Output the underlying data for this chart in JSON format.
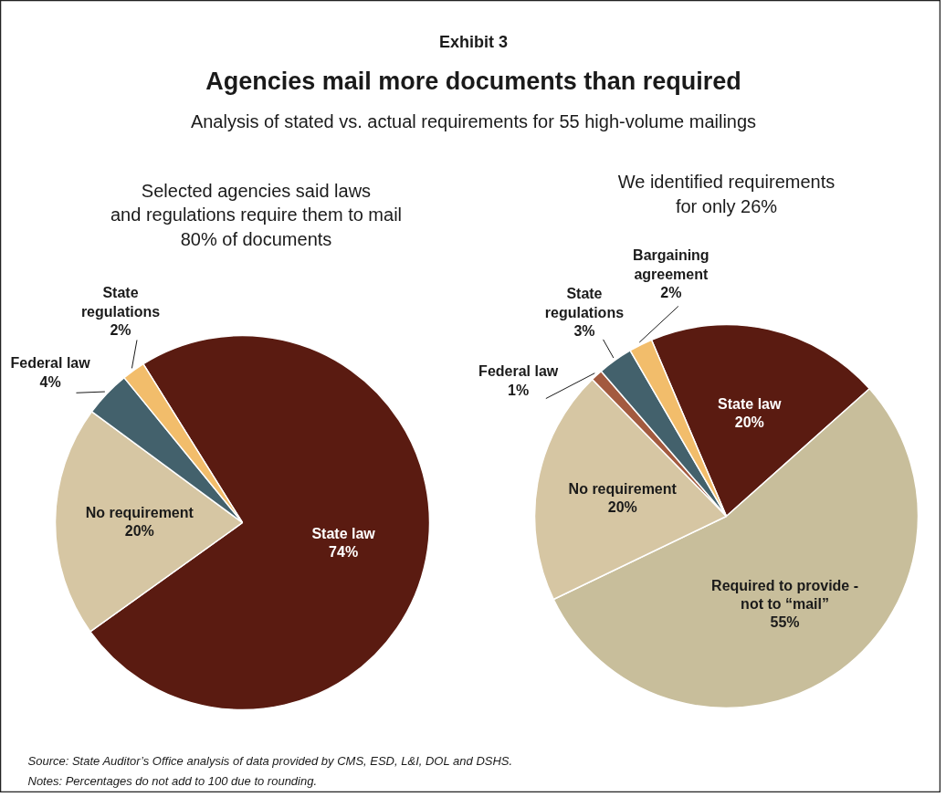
{
  "chart_data": [
    {
      "type": "other",
      "title": "Agencies mail more documents than required",
      "subtitle": "Analysis of stated vs. actual requirements for 55 high-volume mailings",
      "annotations": [
        "Exhibit 3",
        "Source:  State Auditor’s Office analysis of data provided by CMS, ESD, L&I, DOL and DSHS.",
        "Notes:  Percentages do not add to 100 due to rounding."
      ]
    },
    {
      "type": "pie",
      "title": "Selected agencies said laws\nand regulations require them to mail\n80% of documents",
      "categories": [
        "State law",
        "No requirement",
        "Federal law",
        "State regulations"
      ],
      "values": [
        74,
        20,
        4,
        2
      ],
      "value_labels": [
        "74%",
        "20%",
        "4%",
        "2%"
      ],
      "colors": [
        "#5a1b11",
        "#d6c6a3",
        "#43616c",
        "#f2bd6b"
      ]
    },
    {
      "type": "pie",
      "title": "We identified requirements\nfor only 26%",
      "categories": [
        "State law",
        "Required to provide - not to “mail”",
        "No requirement",
        "Federal law",
        "State regulations",
        "Bargaining agreement"
      ],
      "values": [
        20,
        55,
        20,
        1,
        3,
        2
      ],
      "value_labels": [
        "20%",
        "55%",
        "20%",
        "1%",
        "3%",
        "2%"
      ],
      "colors": [
        "#5a1b11",
        "#c8be9b",
        "#d6c6a3",
        "#a35a3f",
        "#43616c",
        "#f2bd6b"
      ]
    }
  ]
}
